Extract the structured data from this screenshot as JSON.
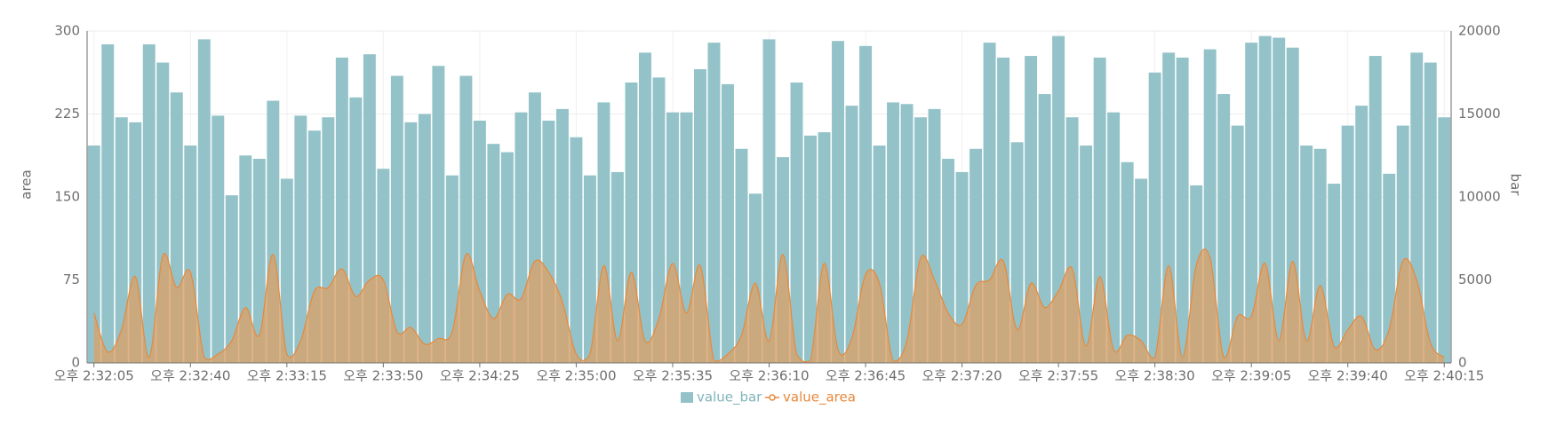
{
  "chart_data": {
    "type": "bar_area",
    "categories": [
      "오후 2:32:05",
      null,
      null,
      null,
      null,
      null,
      null,
      "오후 2:32:40",
      null,
      null,
      null,
      null,
      null,
      null,
      "오후 2:33:15",
      null,
      null,
      null,
      null,
      null,
      null,
      "오후 2:33:50",
      null,
      null,
      null,
      null,
      null,
      null,
      "오후 2:34:25",
      null,
      null,
      null,
      null,
      null,
      null,
      "오후 2:35:00",
      null,
      null,
      null,
      null,
      null,
      null,
      "오후 2:35:35",
      null,
      null,
      null,
      null,
      null,
      null,
      "오후 2:36:10",
      null,
      null,
      null,
      null,
      null,
      null,
      "오후 2:36:45",
      null,
      null,
      null,
      null,
      null,
      null,
      "오후 2:37:20",
      null,
      null,
      null,
      null,
      null,
      null,
      "오후 2:37:55",
      null,
      null,
      null,
      null,
      null,
      null,
      "오후 2:38:30",
      null,
      null,
      null,
      null,
      null,
      null,
      "오후 2:39:05",
      null,
      null,
      null,
      null,
      null,
      null,
      "오후 2:39:40",
      null,
      null,
      null,
      null,
      null,
      null,
      "오후 2:40:15"
    ],
    "ylabel": "area",
    "y2label": "bar",
    "ylim": [
      0,
      300
    ],
    "yticks": [
      0,
      75,
      150,
      225,
      300
    ],
    "y2lim": [
      0,
      20000
    ],
    "y2ticks": [
      0,
      5000,
      10000,
      15000,
      20000
    ],
    "grid": true,
    "legend": "bottom",
    "series": [
      {
        "name": "value_bar",
        "color": "#93c3c9",
        "axis": "y2",
        "values": [
          13100,
          19200,
          14800,
          14500,
          19200,
          18100,
          16300,
          13100,
          19500,
          14900,
          10100,
          12500,
          12300,
          15800,
          11100,
          14900,
          14000,
          14800,
          18400,
          16000,
          18600,
          11700,
          17300,
          14500,
          15000,
          17900,
          11300,
          17300,
          14600,
          13200,
          12700,
          15100,
          16300,
          14600,
          15300,
          13600,
          11300,
          15700,
          11500,
          16900,
          18700,
          17200,
          15100,
          15100,
          17700,
          19300,
          16800,
          12900,
          10200,
          19500,
          12400,
          16900,
          13700,
          13900,
          19400,
          15500,
          19100,
          13100,
          15700,
          15600,
          14800,
          15300,
          12300,
          11500,
          12900,
          19300,
          18400,
          13300,
          18500,
          16200,
          19700,
          14800,
          13100,
          18400,
          15100,
          12100,
          11100,
          17500,
          18700,
          18400,
          10700,
          18900,
          16200,
          14300,
          19300,
          19700,
          19600,
          19000,
          13100,
          12900,
          10800,
          14300,
          15500,
          18500,
          11400,
          14300,
          18700,
          18100,
          14800
        ]
      },
      {
        "name": "value_area",
        "color": "#e8883a",
        "values": [
          45,
          10,
          30,
          78,
          5,
          97,
          68,
          82,
          5,
          8,
          20,
          50,
          25,
          98,
          8,
          20,
          65,
          68,
          85,
          60,
          75,
          75,
          28,
          32,
          17,
          22,
          28,
          98,
          65,
          40,
          62,
          58,
          92,
          82,
          55,
          8,
          8,
          88,
          20,
          82,
          20,
          40,
          90,
          45,
          88,
          2,
          8,
          25,
          72,
          20,
          98,
          8,
          2,
          90,
          12,
          22,
          80,
          72,
          2,
          20,
          95,
          75,
          45,
          35,
          70,
          75,
          92,
          30,
          72,
          50,
          65,
          85,
          15,
          78,
          12,
          25,
          20,
          5,
          88,
          5,
          88,
          95,
          5,
          42,
          42,
          90,
          20,
          92,
          20,
          70,
          15,
          30,
          42,
          12,
          30,
          92,
          75,
          18,
          5
        ]
      }
    ]
  }
}
